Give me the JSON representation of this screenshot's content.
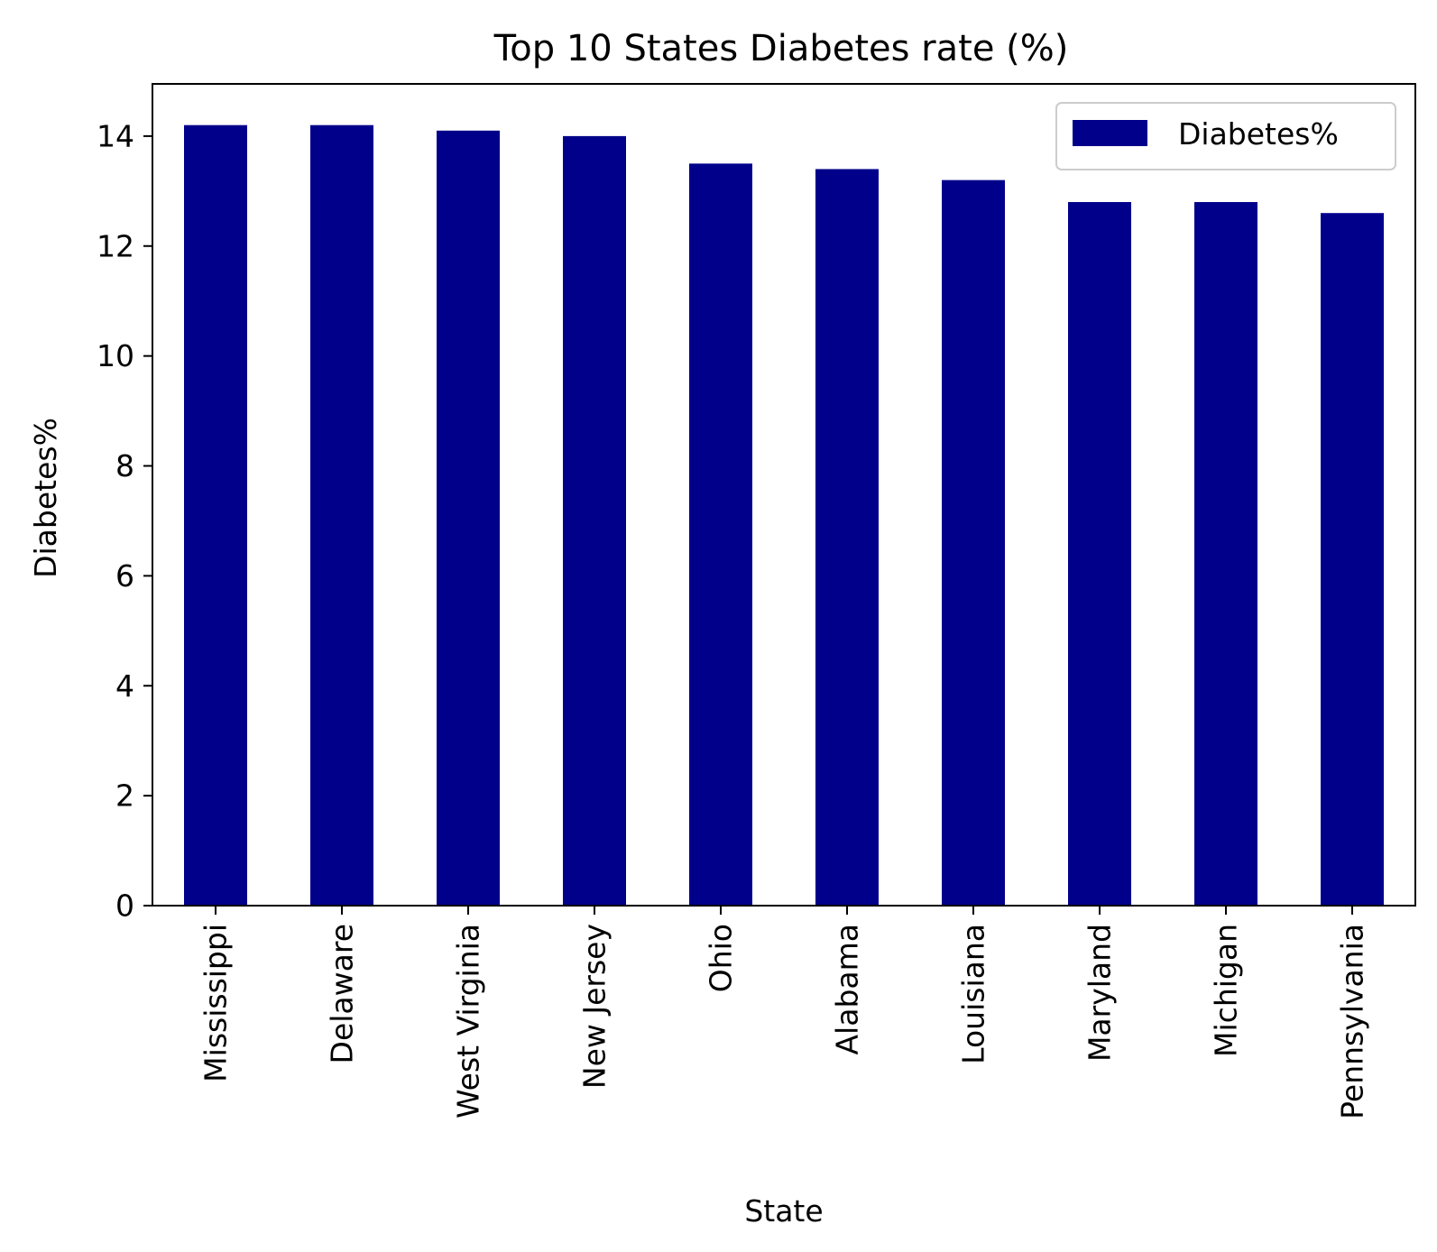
{
  "chart_data": {
    "type": "bar",
    "title": "Top 10 States Diabetes rate (%)",
    "xlabel": "State",
    "ylabel": "Diabetes%",
    "categories": [
      "Mississippi",
      "Delaware",
      "West Virginia",
      "New Jersey",
      "Ohio",
      "Alabama",
      "Louisiana",
      "Maryland",
      "Michigan",
      "Pennsylvania"
    ],
    "series": [
      {
        "name": "Diabetes%",
        "color": "#00008b",
        "values": [
          14.2,
          14.2,
          14.1,
          14.0,
          13.5,
          13.4,
          13.2,
          12.8,
          12.8,
          12.6
        ]
      }
    ],
    "ylim": [
      0,
      14.95
    ],
    "yticks": [
      0,
      2,
      4,
      6,
      8,
      10,
      12,
      14
    ],
    "grid": false,
    "legend_position": "top-right"
  }
}
